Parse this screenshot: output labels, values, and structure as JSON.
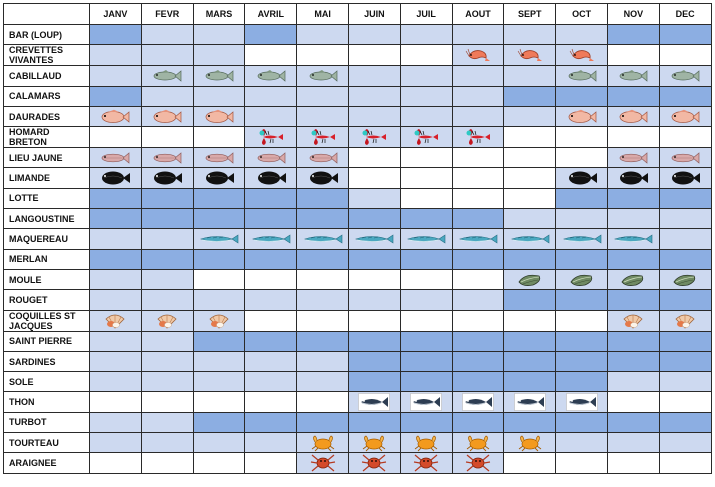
{
  "header": {
    "corner": "",
    "months": [
      "JANV",
      "FEVR",
      "MARS",
      "AVRIL",
      "MAI",
      "JUIN",
      "JUIL",
      "AOUT",
      "SEPT",
      "OCT",
      "NOV",
      "DEC"
    ]
  },
  "colors": {
    "light": "#cdd9f0",
    "dark": "#8caee2",
    "off": "#ffffff",
    "grid": "#2a2a2a"
  },
  "legend_codes": {
    "L": "light blue cell",
    "D": "darker blue cell",
    "W": "white cell (not in season)"
  },
  "rows": [
    {
      "name": "BAR (LOUP)",
      "cells": [
        "D",
        "L",
        "L",
        "D",
        "L",
        "L",
        "L",
        "L",
        "L",
        "L",
        "D",
        "D"
      ],
      "icon": null,
      "icon_months": []
    },
    {
      "name": "CREVETTES VIVANTES",
      "cells": [
        "L",
        "L",
        "L",
        "W",
        "W",
        "W",
        "W",
        "L",
        "L",
        "L",
        "W",
        "W"
      ],
      "icon": "shrimp-icon",
      "icon_months": [
        7,
        8,
        9
      ]
    },
    {
      "name": "CABILLAUD",
      "cells": [
        "L",
        "L",
        "L",
        "L",
        "L",
        "L",
        "L",
        "L",
        "L",
        "L",
        "L",
        "L"
      ],
      "icon": "cod-icon",
      "icon_months": [
        1,
        2,
        3,
        4,
        9,
        10,
        11
      ]
    },
    {
      "name": "CALAMARS",
      "cells": [
        "D",
        "L",
        "L",
        "L",
        "L",
        "L",
        "L",
        "L",
        "D",
        "D",
        "D",
        "D"
      ],
      "icon": null,
      "icon_months": []
    },
    {
      "name": "DAURADES",
      "cells": [
        "L",
        "L",
        "L",
        "L",
        "L",
        "L",
        "L",
        "L",
        "L",
        "L",
        "L",
        "L"
      ],
      "icon": "sea-bream-icon",
      "icon_months": [
        0,
        1,
        2,
        9,
        10,
        11
      ]
    },
    {
      "name": "HOMARD BRETON",
      "cells": [
        "W",
        "W",
        "W",
        "L",
        "L",
        "L",
        "L",
        "L",
        "W",
        "W",
        "W",
        "W"
      ],
      "icon": "lobster-icon",
      "icon_months": [
        3,
        4,
        5,
        6,
        7
      ]
    },
    {
      "name": "LIEU JAUNE",
      "cells": [
        "L",
        "L",
        "L",
        "L",
        "L",
        "W",
        "W",
        "W",
        "W",
        "W",
        "L",
        "L"
      ],
      "icon": "pollock-icon",
      "icon_months": [
        0,
        1,
        2,
        3,
        4,
        10,
        11
      ]
    },
    {
      "name": "LIMANDE",
      "cells": [
        "L",
        "L",
        "L",
        "L",
        "L",
        "W",
        "W",
        "W",
        "W",
        "L",
        "L",
        "L"
      ],
      "icon": "flatfish-icon",
      "icon_months": [
        0,
        1,
        2,
        3,
        4,
        9,
        10,
        11
      ]
    },
    {
      "name": "LOTTE",
      "cells": [
        "D",
        "D",
        "D",
        "D",
        "D",
        "L",
        "W",
        "W",
        "W",
        "D",
        "D",
        "D"
      ],
      "icon": null,
      "icon_months": []
    },
    {
      "name": "LANGOUSTINE",
      "cells": [
        "D",
        "D",
        "D",
        "D",
        "D",
        "D",
        "D",
        "D",
        "L",
        "L",
        "L",
        "L"
      ],
      "icon": null,
      "icon_months": []
    },
    {
      "name": "MAQUEREAU",
      "cells": [
        "L",
        "L",
        "L",
        "L",
        "L",
        "L",
        "L",
        "L",
        "L",
        "L",
        "L",
        "L"
      ],
      "icon": "mackerel-icon",
      "icon_months": [
        2,
        3,
        4,
        5,
        6,
        7,
        8,
        9,
        10
      ]
    },
    {
      "name": "MERLAN",
      "cells": [
        "D",
        "D",
        "D",
        "D",
        "D",
        "D",
        "D",
        "D",
        "D",
        "D",
        "D",
        "D"
      ],
      "icon": null,
      "icon_months": []
    },
    {
      "name": "MOULE",
      "cells": [
        "L",
        "L",
        "W",
        "W",
        "W",
        "W",
        "W",
        "W",
        "L",
        "L",
        "L",
        "L"
      ],
      "icon": "mussel-icon",
      "icon_months": [
        8,
        9,
        10,
        11
      ]
    },
    {
      "name": "ROUGET",
      "cells": [
        "L",
        "L",
        "L",
        "L",
        "L",
        "L",
        "L",
        "L",
        "D",
        "D",
        "D",
        "D"
      ],
      "icon": null,
      "icon_months": []
    },
    {
      "name": "COQUILLES ST JACQUES",
      "cells": [
        "L",
        "L",
        "L",
        "W",
        "W",
        "W",
        "W",
        "W",
        "W",
        "W",
        "L",
        "L"
      ],
      "icon": "scallop-icon",
      "icon_months": [
        0,
        1,
        2,
        10,
        11
      ]
    },
    {
      "name": "SAINT PIERRE",
      "cells": [
        "L",
        "L",
        "D",
        "D",
        "D",
        "D",
        "D",
        "D",
        "D",
        "D",
        "D",
        "D"
      ],
      "icon": null,
      "icon_months": []
    },
    {
      "name": "SARDINES",
      "cells": [
        "L",
        "L",
        "L",
        "L",
        "L",
        "D",
        "D",
        "D",
        "D",
        "D",
        "D",
        "D"
      ],
      "icon": null,
      "icon_months": []
    },
    {
      "name": "SOLE",
      "cells": [
        "L",
        "L",
        "L",
        "L",
        "L",
        "D",
        "D",
        "D",
        "D",
        "D",
        "L",
        "L"
      ],
      "icon": null,
      "icon_months": []
    },
    {
      "name": "THON",
      "cells": [
        "W",
        "W",
        "W",
        "W",
        "W",
        "L",
        "L",
        "L",
        "L",
        "L",
        "W",
        "W"
      ],
      "icon": "tuna-icon",
      "icon_months": [
        5,
        6,
        7,
        8,
        9
      ]
    },
    {
      "name": "TURBOT",
      "cells": [
        "L",
        "L",
        "D",
        "D",
        "D",
        "D",
        "D",
        "D",
        "D",
        "D",
        "D",
        "D"
      ],
      "icon": null,
      "icon_months": []
    },
    {
      "name": "TOURTEAU",
      "cells": [
        "L",
        "L",
        "L",
        "L",
        "L",
        "L",
        "L",
        "L",
        "L",
        "L",
        "L",
        "L"
      ],
      "icon": "brown-crab-icon",
      "icon_months": [
        4,
        5,
        6,
        7,
        8
      ]
    },
    {
      "name": "ARAIGNEE",
      "cells": [
        "W",
        "W",
        "W",
        "W",
        "L",
        "L",
        "L",
        "L",
        "W",
        "W",
        "W",
        "W"
      ],
      "icon": "spider-crab-icon",
      "icon_months": [
        4,
        5,
        6,
        7
      ]
    }
  ]
}
